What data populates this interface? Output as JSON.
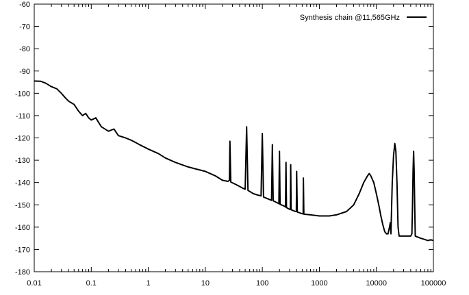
{
  "chart_data": {
    "type": "line",
    "title": "",
    "xlabel": "",
    "ylabel": "",
    "x_scale": "log",
    "xlim": [
      0.01,
      100000
    ],
    "ylim": [
      -180,
      -60
    ],
    "grid": false,
    "legend_position": "top-right",
    "x_tick_labels": [
      "0.01",
      "0.1",
      "1",
      "10",
      "100",
      "1000",
      "10000",
      "100000"
    ],
    "y_tick_labels": [
      "-60",
      "-70",
      "-80",
      "-90",
      "-100",
      "-110",
      "-120",
      "-130",
      "-140",
      "-150",
      "-160",
      "-170",
      "-180"
    ],
    "series": [
      {
        "name": "Synthesis chain @11,565GHz",
        "color": "#000000",
        "points": [
          [
            0.01,
            -94.5
          ],
          [
            0.013,
            -94.6
          ],
          [
            0.016,
            -95.5
          ],
          [
            0.02,
            -97
          ],
          [
            0.025,
            -98
          ],
          [
            0.03,
            -100
          ],
          [
            0.035,
            -102
          ],
          [
            0.04,
            -103.5
          ],
          [
            0.05,
            -105
          ],
          [
            0.06,
            -108
          ],
          [
            0.07,
            -110
          ],
          [
            0.08,
            -109
          ],
          [
            0.09,
            -111
          ],
          [
            0.1,
            -112
          ],
          [
            0.12,
            -111
          ],
          [
            0.15,
            -115
          ],
          [
            0.2,
            -117
          ],
          [
            0.25,
            -116
          ],
          [
            0.3,
            -119
          ],
          [
            0.4,
            -120
          ],
          [
            0.5,
            -121
          ],
          [
            0.7,
            -123
          ],
          [
            1,
            -125
          ],
          [
            1.5,
            -127
          ],
          [
            2,
            -129
          ],
          [
            3,
            -131
          ],
          [
            5,
            -133
          ],
          [
            7,
            -134
          ],
          [
            10,
            -135
          ],
          [
            15,
            -137
          ],
          [
            20,
            -139
          ],
          [
            25,
            -139.5
          ],
          [
            26.5,
            -139
          ],
          [
            27,
            -121.5
          ],
          [
            28,
            -139.8
          ],
          [
            35,
            -141
          ],
          [
            45,
            -142.5
          ],
          [
            50,
            -143
          ],
          [
            53,
            -115
          ],
          [
            56,
            -143.5
          ],
          [
            60,
            -144
          ],
          [
            70,
            -145
          ],
          [
            80,
            -145.5
          ],
          [
            95,
            -146
          ],
          [
            100,
            -118
          ],
          [
            105,
            -146.5
          ],
          [
            130,
            -147.5
          ],
          [
            145,
            -148
          ],
          [
            150,
            -123
          ],
          [
            155,
            -148.2
          ],
          [
            180,
            -149
          ],
          [
            195,
            -149.5
          ],
          [
            200,
            -126
          ],
          [
            205,
            -149.8
          ],
          [
            240,
            -150.5
          ],
          [
            255,
            -151
          ],
          [
            260,
            -131
          ],
          [
            265,
            -151.2
          ],
          [
            300,
            -152
          ],
          [
            310,
            -152
          ],
          [
            315,
            -132
          ],
          [
            320,
            -152.2
          ],
          [
            380,
            -153
          ],
          [
            395,
            -153
          ],
          [
            400,
            -135
          ],
          [
            410,
            -153.2
          ],
          [
            500,
            -154
          ],
          [
            520,
            -154
          ],
          [
            525,
            -138
          ],
          [
            535,
            -154.2
          ],
          [
            700,
            -154.5
          ],
          [
            1000,
            -155
          ],
          [
            1500,
            -155
          ],
          [
            2000,
            -154.5
          ],
          [
            3000,
            -153
          ],
          [
            4000,
            -150
          ],
          [
            5000,
            -145
          ],
          [
            6000,
            -140
          ],
          [
            7000,
            -137
          ],
          [
            7500,
            -136
          ],
          [
            8000,
            -137
          ],
          [
            9000,
            -140
          ],
          [
            10000,
            -145
          ],
          [
            11000,
            -150
          ],
          [
            12000,
            -155
          ],
          [
            13000,
            -159
          ],
          [
            14000,
            -162
          ],
          [
            15000,
            -163
          ],
          [
            16000,
            -163
          ],
          [
            17000,
            -160
          ],
          [
            17500,
            -158
          ],
          [
            18000,
            -163
          ],
          [
            19000,
            -140
          ],
          [
            20000,
            -128
          ],
          [
            21000,
            -122.5
          ],
          [
            22000,
            -126
          ],
          [
            23000,
            -140
          ],
          [
            24000,
            -160
          ],
          [
            25000,
            -164
          ],
          [
            30000,
            -164
          ],
          [
            40000,
            -164
          ],
          [
            42000,
            -163
          ],
          [
            43000,
            -150
          ],
          [
            44000,
            -135
          ],
          [
            45000,
            -126
          ],
          [
            46000,
            -135
          ],
          [
            47000,
            -150
          ],
          [
            48000,
            -164
          ],
          [
            60000,
            -165
          ],
          [
            70000,
            -165.5
          ],
          [
            80000,
            -166
          ],
          [
            90000,
            -165.7
          ],
          [
            100000,
            -166
          ]
        ]
      }
    ]
  }
}
